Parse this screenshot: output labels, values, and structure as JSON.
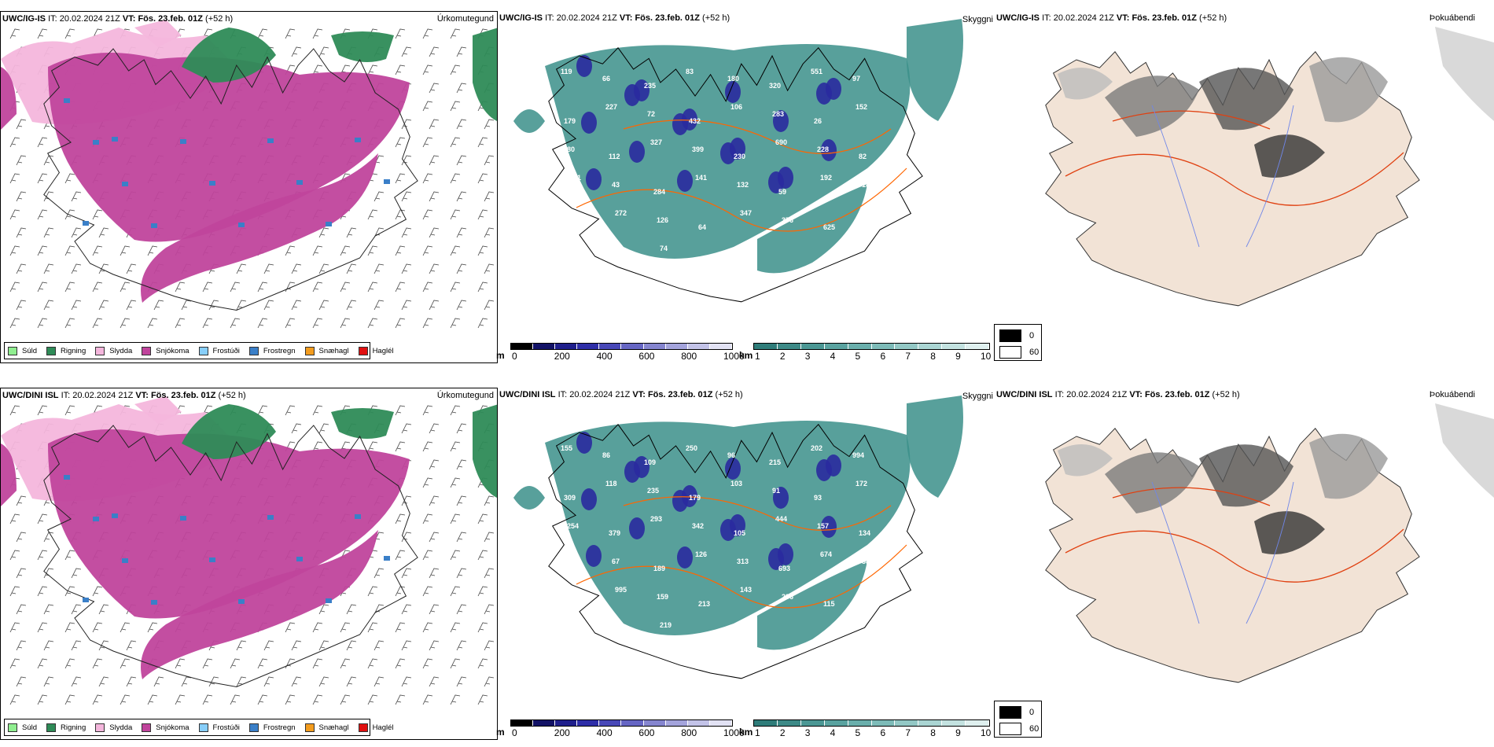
{
  "rows": [
    {
      "model": "UWC/IG-IS",
      "it_label": "IT:",
      "it_value": "20.02.2024 21Z",
      "vt_label": "VT:",
      "vt_value": "Fös. 23.feb. 01Z",
      "lead": "(+52 h)"
    },
    {
      "model": "UWC/DINI ISL",
      "it_label": "IT:",
      "it_value": "20.02.2024 21Z",
      "vt_label": "VT:",
      "vt_value": "Fös. 23.feb. 01Z",
      "lead": "(+52 h)"
    }
  ],
  "panel_titles": {
    "precip_type": "Úrkomutegund",
    "cloud": "Skyggni",
    "fog": "Þokuábendi"
  },
  "precip_legend": [
    {
      "label": "Súld",
      "color": "#90ee90"
    },
    {
      "label": "Rigning",
      "color": "#2e8b57"
    },
    {
      "label": "Slydda",
      "color": "#f4b6dc"
    },
    {
      "label": "Snjókoma",
      "color": "#c0449c"
    },
    {
      "label": "Frostúði",
      "color": "#87cefa"
    },
    {
      "label": "Frostregn",
      "color": "#3a7fc8"
    },
    {
      "label": "Snæhagl",
      "color": "#f39c1e"
    },
    {
      "label": "Haglél",
      "color": "#e01010"
    }
  ],
  "colorbars": {
    "m": {
      "unit": "m",
      "ticks": [
        "0",
        "200",
        "400",
        "600",
        "800",
        "1000"
      ],
      "colors": [
        "#000000",
        "#121266",
        "#1f1f8c",
        "#2e2ea8",
        "#4848b8",
        "#6666c4",
        "#8585cf",
        "#a4a4dc",
        "#c3c3e8",
        "#e2e2f4"
      ]
    },
    "km": {
      "unit": "km",
      "ticks": [
        "1",
        "2",
        "3",
        "4",
        "5",
        "6",
        "7",
        "8",
        "9",
        "10"
      ],
      "colors": [
        "#2f7d7a",
        "#3d8a87",
        "#4b9794",
        "#5aa3a0",
        "#6aafac",
        "#7dbbb8",
        "#93c8c5",
        "#aad5d3",
        "#c3e2e0",
        "#dff0ef"
      ]
    }
  },
  "fog_legend": [
    {
      "label": "0",
      "color": "#000000"
    },
    {
      "label": "60",
      "color": "#ffffff"
    }
  ],
  "cloud_labels": [
    [
      "119",
      "66",
      "235",
      "83",
      "180",
      "320",
      "551",
      "97",
      "179",
      "227",
      "72",
      "432",
      "106",
      "283",
      "26",
      "152",
      "80",
      "112",
      "327",
      "399",
      "230",
      "690",
      "228",
      "82",
      "111",
      "43",
      "284",
      "141",
      "132",
      "59",
      "192",
      "182",
      "250",
      "272",
      "126",
      "64",
      "347",
      "376",
      "625",
      "106",
      "281",
      "429",
      "74"
    ],
    [
      "155",
      "86",
      "109",
      "250",
      "96",
      "215",
      "202",
      "994",
      "309",
      "118",
      "235",
      "179",
      "103",
      "91",
      "93",
      "172",
      "254",
      "379",
      "293",
      "342",
      "105",
      "444",
      "157",
      "134",
      "71",
      "67",
      "189",
      "126",
      "313",
      "693",
      "674",
      "382",
      "160",
      "995",
      "159",
      "213",
      "143",
      "296",
      "115",
      "163",
      "641",
      "179",
      "219"
    ]
  ],
  "colors": {
    "snow": "#c0449c",
    "rain": "#2e8b57",
    "sleet": "#f4b6dc",
    "teal": "#3b8f8a",
    "fog_land": "#f2e3d6",
    "roads": "#ff6600"
  }
}
